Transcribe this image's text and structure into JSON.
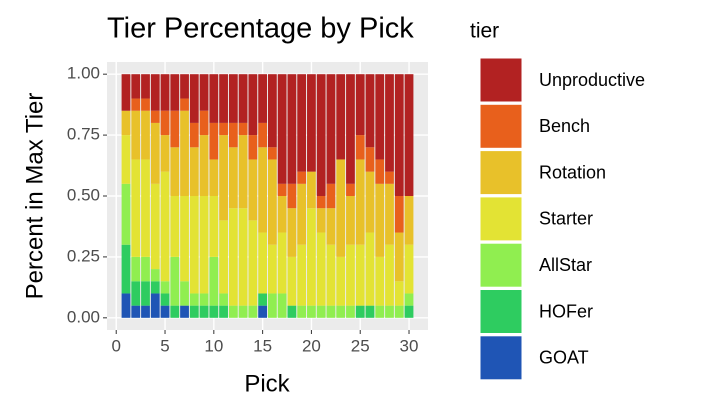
{
  "chart_data": {
    "type": "stacked_bar",
    "title": "Tier Percentage by Pick",
    "legend_title": "tier",
    "xlabel": "Pick",
    "ylabel": "Percent in Max Tier",
    "x": [
      1,
      2,
      3,
      4,
      5,
      6,
      7,
      8,
      9,
      10,
      11,
      12,
      13,
      14,
      15,
      16,
      17,
      18,
      19,
      20,
      21,
      22,
      23,
      24,
      25,
      26,
      27,
      28,
      29,
      30
    ],
    "series": [
      {
        "name": "Unproductive",
        "color": "#b22222",
        "values": [
          0.15,
          0.1,
          0.1,
          0.15,
          0.15,
          0.15,
          0.1,
          0.2,
          0.15,
          0.2,
          0.2,
          0.2,
          0.2,
          0.25,
          0.2,
          0.3,
          0.45,
          0.45,
          0.4,
          0.4,
          0.5,
          0.45,
          0.35,
          0.45,
          0.25,
          0.3,
          0.35,
          0.4,
          0.5,
          0.5
        ]
      },
      {
        "name": "Bench",
        "color": "#e8601c",
        "values": [
          0,
          0.05,
          0.05,
          0.05,
          0.1,
          0.15,
          0.05,
          0.1,
          0.1,
          0.15,
          0.05,
          0.1,
          0.05,
          0.1,
          0.1,
          0.05,
          0.05,
          0.1,
          0.05,
          0,
          0.05,
          0.1,
          0,
          0.05,
          0.1,
          0.1,
          0.1,
          0.05,
          0.15,
          0
        ]
      },
      {
        "name": "Rotation",
        "color": "#e8c12a",
        "values": [
          0.1,
          0.2,
          0.2,
          0.25,
          0.15,
          0.2,
          0.35,
          0.2,
          0.25,
          0.15,
          0.35,
          0.25,
          0.3,
          0.25,
          0.35,
          0.35,
          0.15,
          0.2,
          0.25,
          0.15,
          0.1,
          0.15,
          0.4,
          0.2,
          0.35,
          0.25,
          0.3,
          0.25,
          0.2,
          0.2
        ]
      },
      {
        "name": "Starter",
        "color": "#e3e334",
        "values": [
          0.2,
          0.4,
          0.4,
          0.35,
          0.45,
          0.25,
          0.35,
          0.4,
          0.4,
          0.25,
          0.3,
          0.4,
          0.4,
          0.35,
          0.25,
          0.2,
          0.25,
          0.2,
          0.25,
          0.4,
          0.3,
          0.25,
          0.2,
          0.25,
          0.25,
          0.3,
          0.2,
          0.25,
          0.1,
          0.2
        ]
      },
      {
        "name": "AllStar",
        "color": "#90ee50",
        "values": [
          0.25,
          0.1,
          0.1,
          0.05,
          0.05,
          0.2,
          0.1,
          0.05,
          0.05,
          0.2,
          0.05,
          0.05,
          0.05,
          0.05,
          0,
          0.1,
          0.1,
          0,
          0.05,
          0.05,
          0.05,
          0.05,
          0.05,
          0.05,
          0,
          0,
          0.05,
          0.05,
          0.05,
          0.05
        ]
      },
      {
        "name": "HOFer",
        "color": "#2ecc60",
        "values": [
          0.2,
          0.1,
          0.1,
          0.05,
          0.05,
          0.05,
          0,
          0.05,
          0.05,
          0.05,
          0.05,
          0,
          0,
          0,
          0.05,
          0,
          0,
          0.05,
          0,
          0,
          0,
          0,
          0,
          0,
          0.05,
          0.05,
          0,
          0,
          0,
          0.05
        ]
      },
      {
        "name": "GOAT",
        "color": "#1f55b5",
        "values": [
          0.1,
          0.05,
          0.05,
          0.1,
          0.05,
          0,
          0.05,
          0,
          0,
          0,
          0,
          0,
          0,
          0,
          0.05,
          0,
          0,
          0,
          0,
          0,
          0,
          0,
          0,
          0,
          0,
          0,
          0,
          0,
          0,
          0
        ]
      }
    ],
    "xlim": [
      -0.945,
      31.945
    ],
    "xticks": [
      0,
      5,
      10,
      15,
      20,
      25,
      30
    ],
    "ylim": [
      -0.05,
      1.05
    ],
    "yticks": [
      {
        "value": 0,
        "label": "0.00"
      },
      {
        "value": 0.25,
        "label": "0.25"
      },
      {
        "value": 0.5,
        "label": "0.50"
      },
      {
        "value": 0.75,
        "label": "0.75"
      },
      {
        "value": 1,
        "label": "1.00"
      }
    ],
    "grid": true
  }
}
